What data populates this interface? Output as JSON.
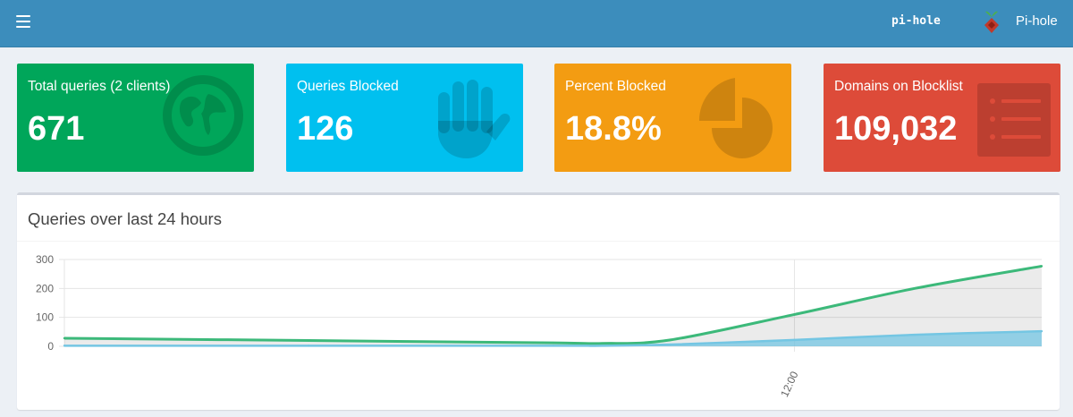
{
  "header": {
    "menu_icon": "hamburger-icon",
    "hostname": "pi-hole",
    "brand": "Pi-hole",
    "logo_icon": "raspberry-logo-icon"
  },
  "colors": {
    "header": "#3c8dbc",
    "green": "#00a65a",
    "aqua": "#00c0ef",
    "yellow": "#f39c12",
    "red": "#dd4b39",
    "permitted_line": "#3cb97a",
    "blocked_line": "#74c6e3"
  },
  "stats": [
    {
      "label": "Total queries (2 clients)",
      "value": "671",
      "icon": "globe-icon"
    },
    {
      "label": "Queries Blocked",
      "value": "126",
      "icon": "hand-icon"
    },
    {
      "label": "Percent Blocked",
      "value": "18.8%",
      "icon": "pie-chart-icon"
    },
    {
      "label": "Domains on Blocklist",
      "value": "109,032",
      "icon": "list-icon"
    }
  ],
  "chart_panel": {
    "title": "Queries over last 24 hours"
  },
  "chart_data": {
    "type": "area",
    "ylim": [
      0,
      300
    ],
    "yticks": [
      0,
      100,
      200,
      300
    ],
    "grid": true,
    "xlabel": "",
    "ylabel": "",
    "xtick_labels": [
      {
        "at": 0.747,
        "label": "12:00"
      }
    ],
    "x": [
      0,
      0.25,
      0.5,
      0.55,
      0.62,
      0.747,
      0.87,
      1.0
    ],
    "series": [
      {
        "values": [
          28,
          20,
          12,
          10,
          22,
          110,
          200,
          277
        ],
        "color": "#3cb97a"
      },
      {
        "values": [
          2,
          2,
          2,
          2,
          6,
          22,
          40,
          52
        ],
        "color": "#74c6e3"
      }
    ]
  }
}
